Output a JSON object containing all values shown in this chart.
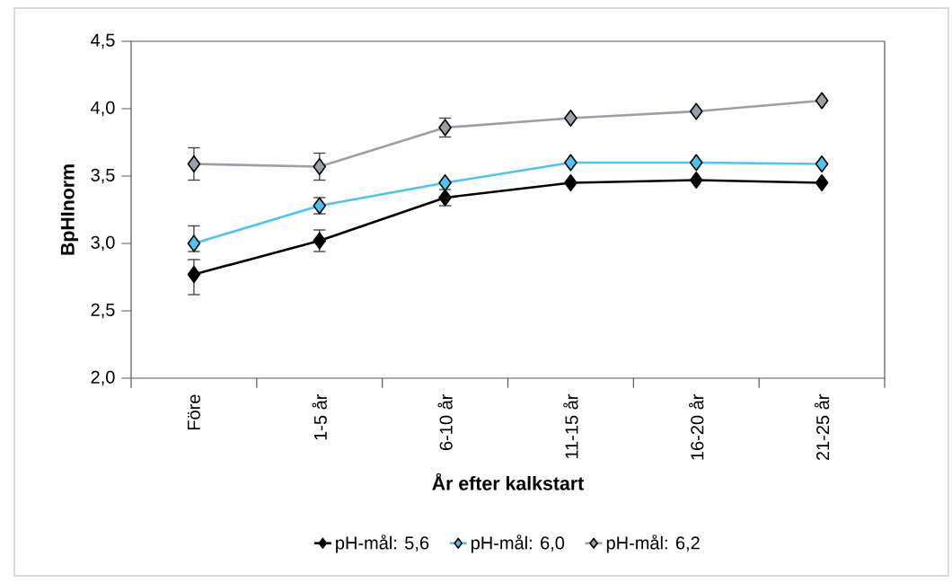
{
  "chart_data": {
    "type": "line",
    "xlabel": "År efter kalkstart",
    "ylabel": "BpHInorm",
    "categories": [
      "Före",
      "1-5 år",
      "6-10 år",
      "11-15 år",
      "16-20 år",
      "21-25 år"
    ],
    "series": [
      {
        "name": "pH-mål: 5,6",
        "color": "#000000",
        "values": [
          2.77,
          3.02,
          3.34,
          3.45,
          3.47,
          3.45
        ],
        "errors": [
          [
            2.62,
            2.88
          ],
          0.08,
          0.06,
          null,
          null,
          null
        ]
      },
      {
        "name": "pH-mål: 6,0",
        "color": "#4dc3f0",
        "values": [
          3.0,
          3.28,
          3.45,
          3.6,
          3.6,
          3.59
        ],
        "errors": [
          [
            2.94,
            3.13
          ],
          0.06,
          null,
          null,
          null,
          null
        ]
      },
      {
        "name": "pH-mål: 6,2",
        "color": "#9aa0a8",
        "values": [
          3.59,
          3.57,
          3.86,
          3.93,
          3.98,
          4.06
        ],
        "errors": [
          0.12,
          0.1,
          0.07,
          null,
          null,
          null
        ]
      }
    ],
    "ylim": [
      2.0,
      4.5
    ],
    "yticks": [
      {
        "value": 2.0,
        "label": "2,0"
      },
      {
        "value": 2.5,
        "label": "2,5"
      },
      {
        "value": 3.0,
        "label": "3,0"
      },
      {
        "value": 3.5,
        "label": "3,5"
      },
      {
        "value": 4.0,
        "label": "4,0"
      },
      {
        "value": 4.5,
        "label": "4,5"
      }
    ],
    "legend": "bottom",
    "grid": false,
    "marker": "diamond",
    "line_style": "solid"
  }
}
